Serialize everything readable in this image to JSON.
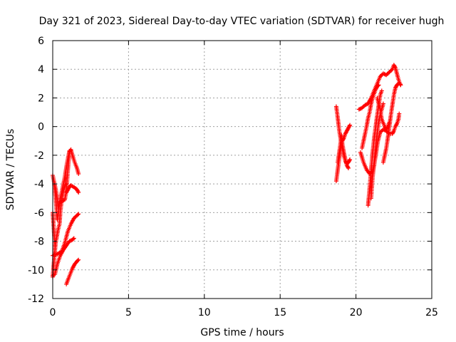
{
  "chart_data": {
    "type": "scatter",
    "title": "Day 321 of 2023, Sidereal Day-to-day VTEC variation (SDTVAR) for receiver hugh",
    "xlabel": "GPS time / hours",
    "ylabel": "SDTVAR / TECUs",
    "xlim": [
      0,
      25
    ],
    "ylim": [
      -12,
      6
    ],
    "xticks": [
      0,
      5,
      10,
      15,
      20,
      25
    ],
    "yticks": [
      -12,
      -10,
      -8,
      -6,
      -4,
      -2,
      0,
      2,
      4,
      6
    ],
    "xtick_labels": [
      "0",
      "5",
      "10",
      "15",
      "20",
      "25"
    ],
    "ytick_labels": [
      "-12",
      "-10",
      "-8",
      "-6",
      "-4",
      "-2",
      "0",
      "2",
      "4",
      "6"
    ],
    "grid": true,
    "legend": "none",
    "marker": "+",
    "color": "#ff0000",
    "series": [
      {
        "segments": [
          [
            [
              0.0,
              -3.4
            ],
            [
              0.1,
              -3.9
            ],
            [
              0.2,
              -4.4
            ],
            [
              0.3,
              -5.0
            ],
            [
              0.35,
              -5.6
            ],
            [
              0.45,
              -5.3
            ],
            [
              0.6,
              -5.2
            ],
            [
              0.8,
              -5.1
            ],
            [
              0.9,
              -4.5
            ],
            [
              1.0,
              -3.0
            ],
            [
              1.1,
              -1.8
            ],
            [
              1.2,
              -1.6
            ],
            [
              1.3,
              -2.0
            ],
            [
              1.45,
              -2.5
            ],
            [
              1.6,
              -2.9
            ],
            [
              1.7,
              -3.3
            ]
          ],
          [
            [
              0.1,
              -4.0
            ],
            [
              0.2,
              -5.0
            ],
            [
              0.25,
              -5.8
            ],
            [
              0.3,
              -6.5
            ],
            [
              0.4,
              -5.8
            ],
            [
              0.5,
              -5.0
            ],
            [
              0.65,
              -4.3
            ],
            [
              0.8,
              -3.5
            ],
            [
              0.95,
              -2.5
            ],
            [
              1.05,
              -2.0
            ],
            [
              1.1,
              -1.7
            ]
          ],
          [
            [
              0.9,
              -4.6
            ],
            [
              1.0,
              -4.4
            ],
            [
              1.1,
              -4.2
            ],
            [
              1.2,
              -4.1
            ],
            [
              1.35,
              -4.2
            ],
            [
              1.5,
              -4.3
            ],
            [
              1.6,
              -4.4
            ],
            [
              1.7,
              -4.6
            ]
          ],
          [
            [
              0.0,
              -6.0
            ],
            [
              0.05,
              -6.8
            ],
            [
              0.1,
              -7.6
            ],
            [
              0.15,
              -8.3
            ],
            [
              0.25,
              -7.8
            ],
            [
              0.35,
              -7.2
            ],
            [
              0.45,
              -6.8
            ],
            [
              0.5,
              -6.0
            ],
            [
              0.6,
              -5.0
            ],
            [
              0.75,
              -4.3
            ],
            [
              0.85,
              -4.0
            ]
          ],
          [
            [
              0.0,
              -9.0
            ],
            [
              0.3,
              -8.9
            ],
            [
              0.6,
              -8.7
            ],
            [
              0.8,
              -8.1
            ],
            [
              1.0,
              -7.3
            ],
            [
              1.2,
              -6.8
            ],
            [
              1.4,
              -6.4
            ],
            [
              1.6,
              -6.2
            ],
            [
              1.7,
              -6.1
            ]
          ],
          [
            [
              0.0,
              -10.4
            ],
            [
              0.15,
              -10.3
            ],
            [
              0.3,
              -9.6
            ],
            [
              0.5,
              -9.0
            ],
            [
              0.7,
              -8.6
            ],
            [
              0.9,
              -8.3
            ],
            [
              1.1,
              -8.0
            ],
            [
              1.3,
              -7.9
            ],
            [
              1.4,
              -7.8
            ]
          ],
          [
            [
              0.0,
              -10.5
            ],
            [
              0.05,
              -9.8
            ],
            [
              0.1,
              -9.2
            ],
            [
              0.15,
              -8.6
            ],
            [
              0.2,
              -8.0
            ]
          ],
          [
            [
              0.9,
              -11.0
            ],
            [
              1.0,
              -10.7
            ],
            [
              1.15,
              -10.3
            ],
            [
              1.3,
              -9.9
            ],
            [
              1.45,
              -9.6
            ],
            [
              1.6,
              -9.4
            ],
            [
              1.7,
              -9.3
            ]
          ],
          [
            [
              18.7,
              1.4
            ],
            [
              18.8,
              0.6
            ],
            [
              18.9,
              -0.3
            ],
            [
              19.0,
              -0.9
            ],
            [
              19.1,
              -1.5
            ],
            [
              19.2,
              -2.0
            ],
            [
              19.3,
              -2.4
            ],
            [
              19.4,
              -2.6
            ],
            [
              19.5,
              -2.5
            ],
            [
              19.6,
              -2.3
            ]
          ],
          [
            [
              18.7,
              -3.8
            ],
            [
              18.8,
              -3.0
            ],
            [
              18.9,
              -2.2
            ],
            [
              19.0,
              -1.5
            ],
            [
              19.1,
              -1.0
            ],
            [
              19.2,
              -0.8
            ],
            [
              19.3,
              -0.5
            ],
            [
              19.4,
              -0.3
            ],
            [
              19.5,
              -0.1
            ],
            [
              19.6,
              0.1
            ]
          ],
          [
            [
              18.8,
              -2.5
            ],
            [
              18.9,
              -1.8
            ],
            [
              19.0,
              -1.0
            ],
            [
              19.05,
              -0.6
            ],
            [
              19.1,
              -1.2
            ],
            [
              19.2,
              -1.8
            ],
            [
              19.3,
              -2.3
            ],
            [
              19.4,
              -2.7
            ],
            [
              19.5,
              -2.9
            ]
          ],
          [
            [
              20.2,
              1.2
            ],
            [
              20.4,
              1.3
            ],
            [
              20.6,
              1.5
            ],
            [
              20.8,
              1.6
            ],
            [
              21.0,
              2.0
            ],
            [
              21.2,
              2.5
            ],
            [
              21.4,
              3.0
            ],
            [
              21.6,
              3.5
            ],
            [
              21.8,
              3.7
            ],
            [
              22.0,
              3.6
            ],
            [
              22.2,
              3.8
            ],
            [
              22.4,
              4.0
            ],
            [
              22.5,
              4.3
            ],
            [
              22.6,
              4.1
            ],
            [
              22.7,
              3.7
            ],
            [
              22.8,
              3.3
            ],
            [
              22.9,
              3.0
            ],
            [
              22.95,
              2.9
            ]
          ],
          [
            [
              20.3,
              -1.8
            ],
            [
              20.5,
              -2.5
            ],
            [
              20.7,
              -3.0
            ],
            [
              20.9,
              -3.3
            ],
            [
              21.1,
              -3.1
            ],
            [
              21.2,
              -2.7
            ],
            [
              21.3,
              -2.0
            ],
            [
              21.45,
              -1.0
            ],
            [
              21.6,
              -0.4
            ],
            [
              21.8,
              -0.2
            ],
            [
              22.0,
              -0.3
            ],
            [
              22.2,
              -0.5
            ],
            [
              22.4,
              -0.5
            ],
            [
              22.5,
              -0.3
            ],
            [
              22.6,
              0.0
            ],
            [
              22.7,
              0.2
            ],
            [
              22.8,
              0.5
            ],
            [
              22.85,
              0.9
            ]
          ],
          [
            [
              20.4,
              -1.5
            ],
            [
              20.5,
              -1.0
            ],
            [
              20.6,
              -0.5
            ],
            [
              20.7,
              0.0
            ],
            [
              20.8,
              0.6
            ],
            [
              20.9,
              1.0
            ],
            [
              21.0,
              1.6
            ],
            [
              21.1,
              2.0
            ],
            [
              21.2,
              2.3
            ],
            [
              21.3,
              2.6
            ],
            [
              21.4,
              2.8
            ],
            [
              21.5,
              2.9
            ]
          ],
          [
            [
              20.8,
              -5.5
            ],
            [
              20.9,
              -4.3
            ],
            [
              21.0,
              -3.0
            ],
            [
              21.1,
              -1.8
            ],
            [
              21.2,
              -0.8
            ],
            [
              21.3,
              0.0
            ],
            [
              21.4,
              0.8
            ],
            [
              21.5,
              1.5
            ],
            [
              21.6,
              2.2
            ],
            [
              21.7,
              2.5
            ]
          ],
          [
            [
              21.0,
              -5.0
            ],
            [
              21.1,
              -3.5
            ],
            [
              21.2,
              -2.5
            ],
            [
              21.3,
              -1.5
            ],
            [
              21.4,
              -0.5
            ],
            [
              21.5,
              0.3
            ],
            [
              21.6,
              0.8
            ],
            [
              21.7,
              1.2
            ],
            [
              21.8,
              1.6
            ]
          ],
          [
            [
              21.8,
              -2.5
            ],
            [
              21.9,
              -2.0
            ],
            [
              22.0,
              -1.5
            ],
            [
              22.1,
              -0.8
            ],
            [
              22.2,
              0.0
            ],
            [
              22.3,
              0.8
            ],
            [
              22.4,
              1.5
            ],
            [
              22.5,
              2.2
            ],
            [
              22.6,
              2.7
            ],
            [
              22.7,
              2.9
            ],
            [
              22.8,
              3.0
            ]
          ],
          [
            [
              21.4,
              2.0
            ],
            [
              21.6,
              1.2
            ],
            [
              21.7,
              0.5
            ],
            [
              21.9,
              0.0
            ],
            [
              22.0,
              -0.2
            ],
            [
              22.1,
              0.0
            ],
            [
              22.2,
              0.3
            ]
          ]
        ]
      }
    ]
  }
}
